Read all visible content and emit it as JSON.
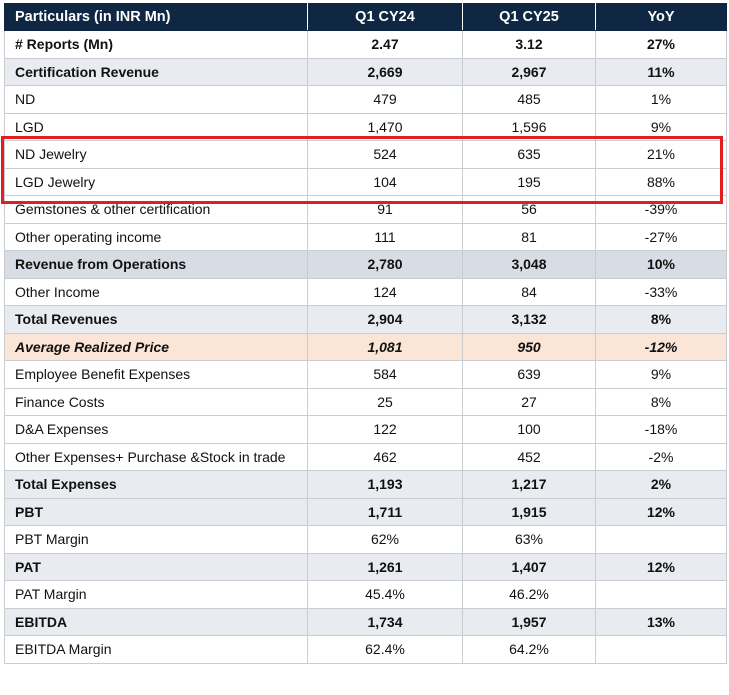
{
  "table": {
    "headers": [
      "Particulars (in INR Mn)",
      "Q1 CY24",
      "Q1 CY25",
      "YoY"
    ],
    "rows": [
      {
        "label": "# Reports (Mn)",
        "q1cy24": "2.47",
        "q1cy25": "3.12",
        "yoy": "27%"
      },
      {
        "label": "Certification Revenue",
        "q1cy24": "2,669",
        "q1cy25": "2,967",
        "yoy": "11%"
      },
      {
        "label": "ND",
        "q1cy24": "479",
        "q1cy25": "485",
        "yoy": "1%"
      },
      {
        "label": "LGD",
        "q1cy24": "1,470",
        "q1cy25": "1,596",
        "yoy": "9%"
      },
      {
        "label": "ND Jewelry",
        "q1cy24": "524",
        "q1cy25": "635",
        "yoy": "21%"
      },
      {
        "label": "LGD Jewelry",
        "q1cy24": "104",
        "q1cy25": "195",
        "yoy": "88%"
      },
      {
        "label": "Gemstones & other certification",
        "q1cy24": "91",
        "q1cy25": "56",
        "yoy": "-39%"
      },
      {
        "label": "Other operating income",
        "q1cy24": "111",
        "q1cy25": "81",
        "yoy": "-27%"
      },
      {
        "label": "Revenue from Operations",
        "q1cy24": "2,780",
        "q1cy25": "3,048",
        "yoy": "10%"
      },
      {
        "label": "Other Income",
        "q1cy24": "124",
        "q1cy25": "84",
        "yoy": "-33%"
      },
      {
        "label": "Total Revenues",
        "q1cy24": "2,904",
        "q1cy25": "3,132",
        "yoy": "8%"
      },
      {
        "label": "Average Realized Price",
        "q1cy24": "1,081",
        "q1cy25": "950",
        "yoy": "-12%"
      },
      {
        "label": "Employee Benefit Expenses",
        "q1cy24": "584",
        "q1cy25": "639",
        "yoy": "9%"
      },
      {
        "label": "Finance Costs",
        "q1cy24": "25",
        "q1cy25": "27",
        "yoy": "8%"
      },
      {
        "label": "D&A Expenses",
        "q1cy24": "122",
        "q1cy25": "100",
        "yoy": "-18%"
      },
      {
        "label": "Other Expenses+ Purchase &Stock in trade",
        "q1cy24": "462",
        "q1cy25": "452",
        "yoy": "-2%"
      },
      {
        "label": "Total Expenses",
        "q1cy24": "1,193",
        "q1cy25": "1,217",
        "yoy": "2%"
      },
      {
        "label": "PBT",
        "q1cy24": "1,711",
        "q1cy25": "1,915",
        "yoy": "12%"
      },
      {
        "label": "PBT Margin",
        "q1cy24": "62%",
        "q1cy25": "63%",
        "yoy": ""
      },
      {
        "label": "PAT",
        "q1cy24": "1,261",
        "q1cy25": "1,407",
        "yoy": "12%"
      },
      {
        "label": "PAT Margin",
        "q1cy24": "45.4%",
        "q1cy25": "46.2%",
        "yoy": ""
      },
      {
        "label": "EBITDA",
        "q1cy24": "1,734",
        "q1cy25": "1,957",
        "yoy": "13%"
      },
      {
        "label": "EBITDA Margin",
        "q1cy24": "62.4%",
        "q1cy25": "64.2%",
        "yoy": ""
      }
    ]
  },
  "colors": {
    "header_bg": "#0f2742",
    "row_shade": "#e8ebf0",
    "row_shade_dark": "#d8dde5",
    "peach": "#fbe5d6",
    "highlight_border": "#e02020"
  }
}
